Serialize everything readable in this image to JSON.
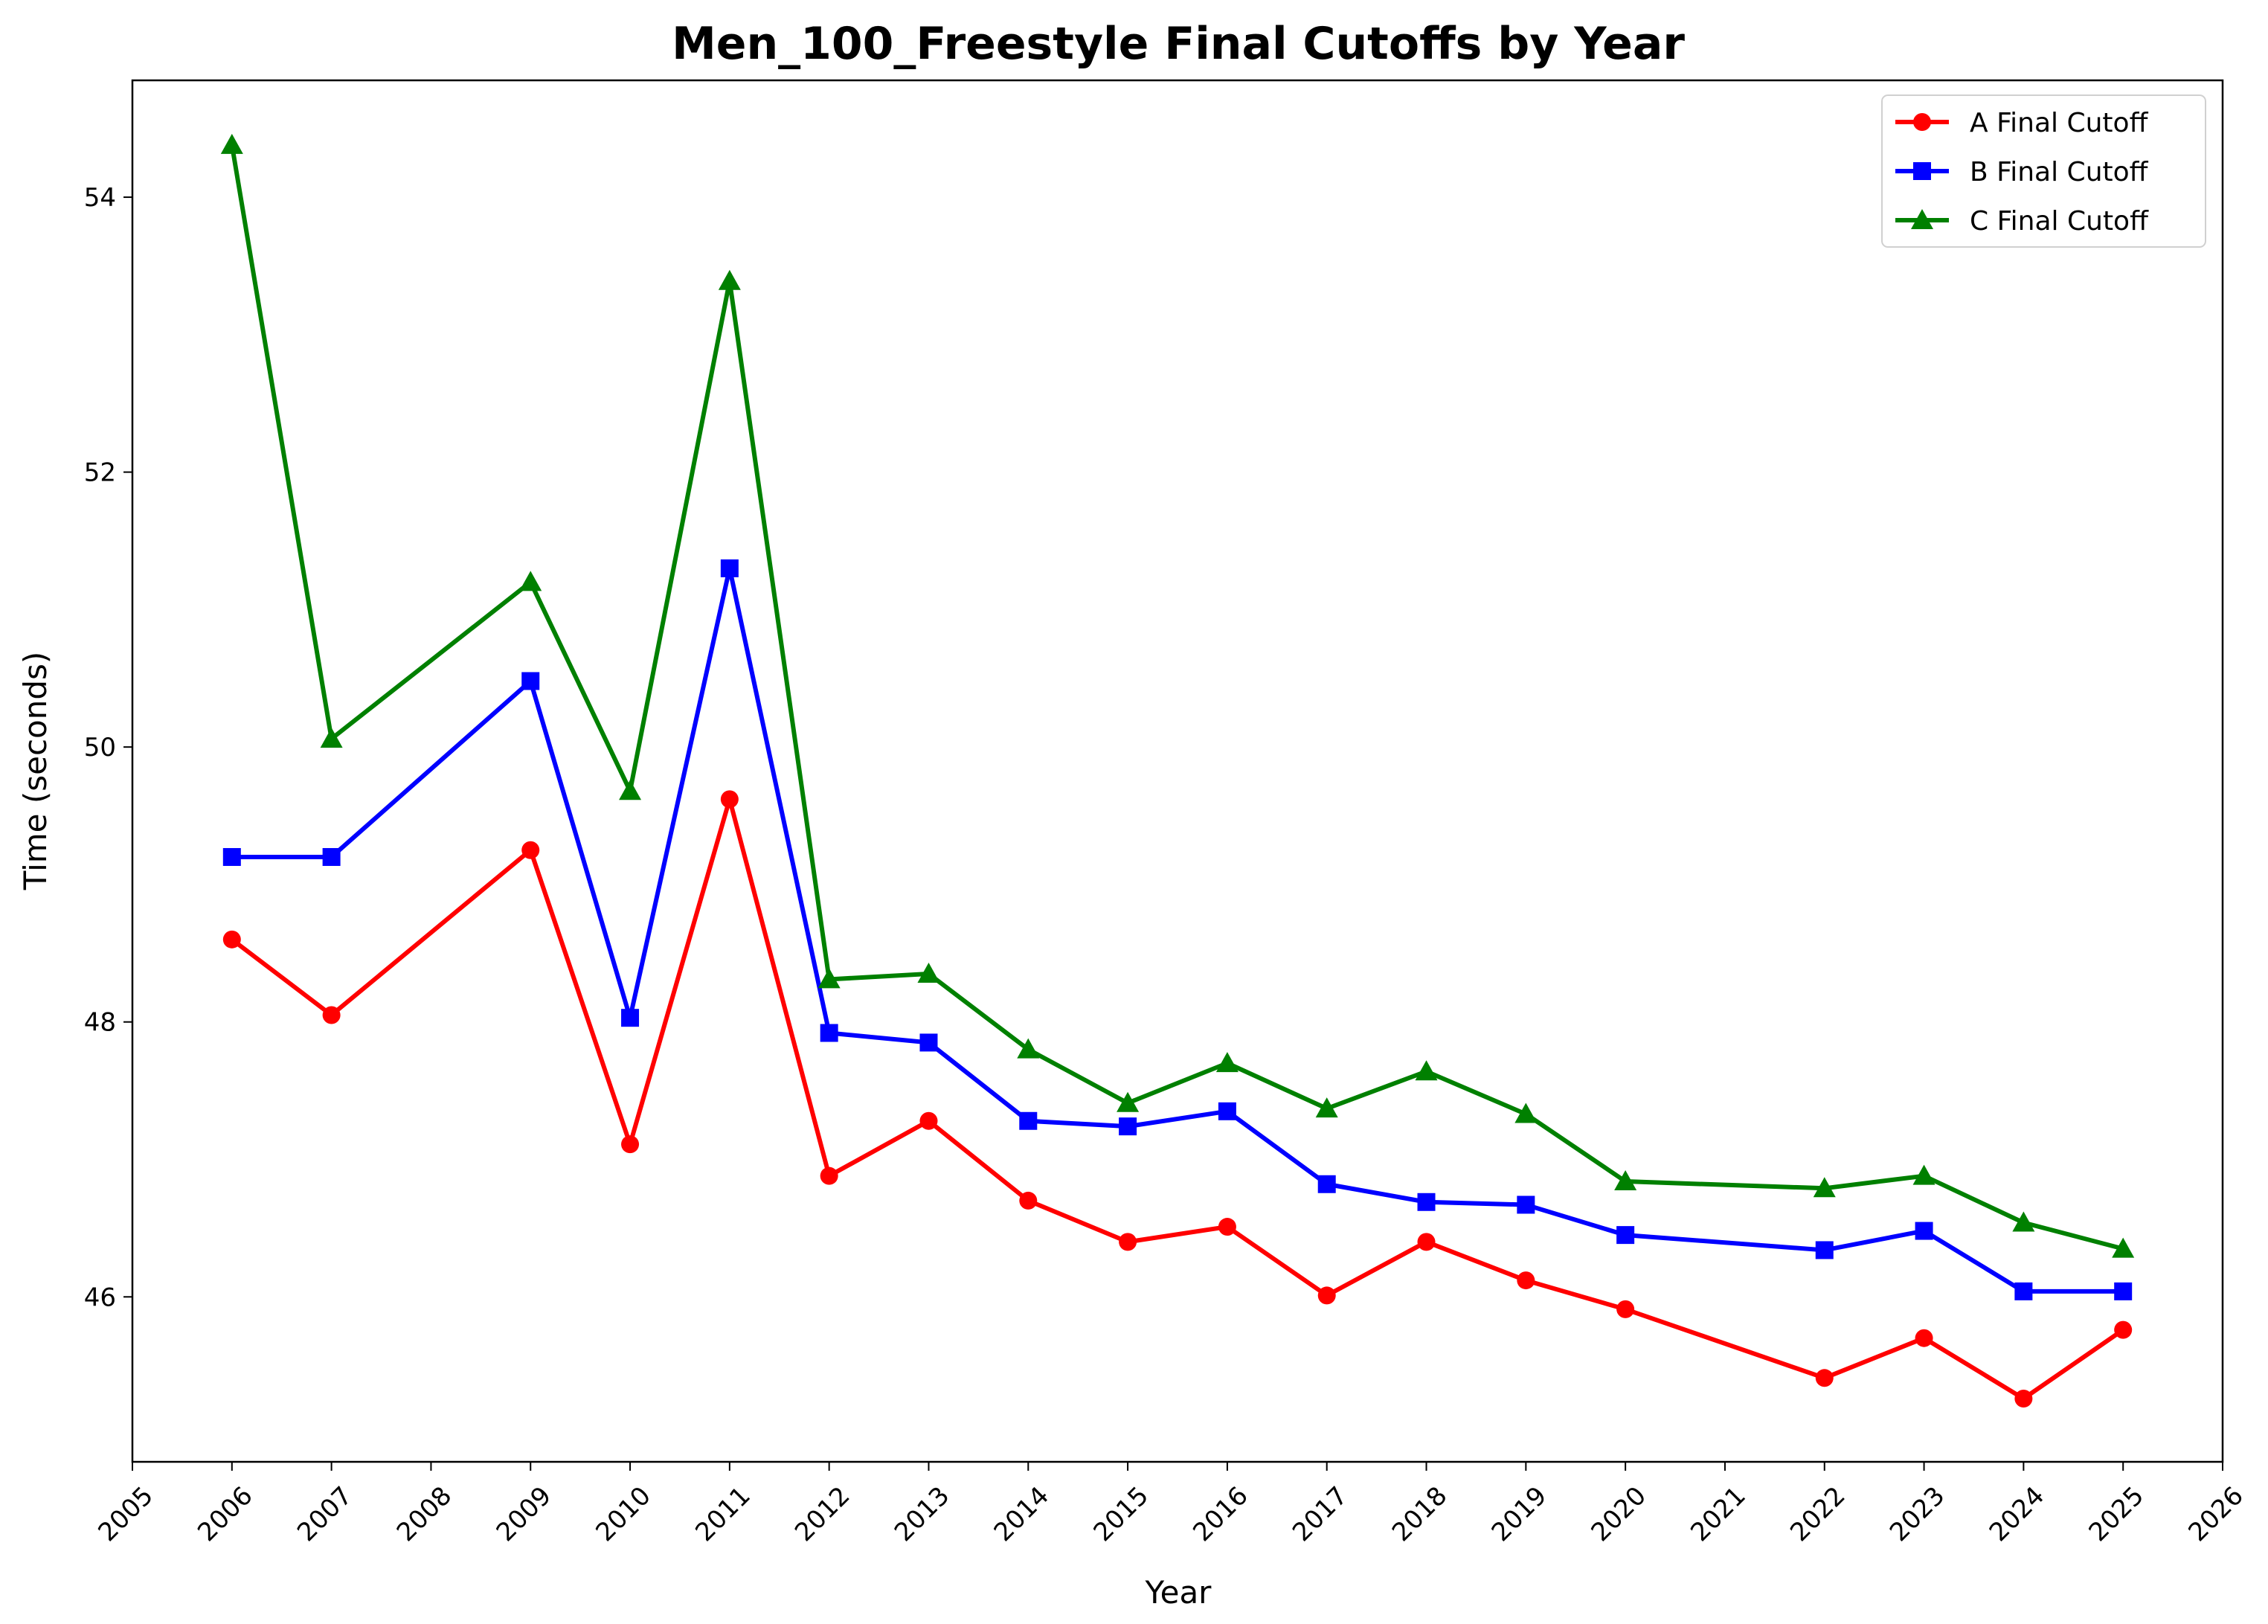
{
  "chart_data": {
    "type": "line",
    "title": "Men_100_Freestyle Final Cutoffs by Year",
    "xlabel": "Year",
    "ylabel": "Time (seconds)",
    "xlim": [
      2005,
      2026
    ],
    "ylim": [
      44.8,
      54.85
    ],
    "x_ticks": [
      2005,
      2006,
      2007,
      2008,
      2009,
      2010,
      2011,
      2012,
      2013,
      2014,
      2015,
      2016,
      2017,
      2018,
      2019,
      2020,
      2021,
      2022,
      2023,
      2024,
      2025,
      2026
    ],
    "y_ticks": [
      46,
      48,
      50,
      52,
      54
    ],
    "grid": false,
    "legend_position": "top-right",
    "series": [
      {
        "name": "A Final Cutoff",
        "color": "#ff0000",
        "marker": "circle",
        "x": [
          2006,
          2007,
          2009,
          2010,
          2011,
          2012,
          2013,
          2014,
          2015,
          2016,
          2017,
          2018,
          2019,
          2020,
          2022,
          2023,
          2024,
          2025
        ],
        "values": [
          48.6,
          48.05,
          49.25,
          47.11,
          49.62,
          46.88,
          47.28,
          46.7,
          46.4,
          46.51,
          46.01,
          46.4,
          46.12,
          45.91,
          45.41,
          45.7,
          45.26,
          45.76
        ]
      },
      {
        "name": "B Final Cutoff",
        "color": "#0000ff",
        "marker": "square",
        "x": [
          2006,
          2007,
          2009,
          2010,
          2011,
          2012,
          2013,
          2014,
          2015,
          2016,
          2017,
          2018,
          2019,
          2020,
          2022,
          2023,
          2024,
          2025
        ],
        "values": [
          49.2,
          49.2,
          50.48,
          48.03,
          51.3,
          47.92,
          47.85,
          47.28,
          47.24,
          47.35,
          46.82,
          46.69,
          46.67,
          46.45,
          46.34,
          46.48,
          46.04,
          46.04
        ]
      },
      {
        "name": "C Final Cutoff",
        "color": "#008000",
        "marker": "triangle",
        "x": [
          2006,
          2007,
          2009,
          2010,
          2011,
          2012,
          2013,
          2014,
          2015,
          2016,
          2017,
          2018,
          2019,
          2020,
          2022,
          2023,
          2024,
          2025
        ],
        "values": [
          54.38,
          50.06,
          51.2,
          49.68,
          53.39,
          48.31,
          48.35,
          47.8,
          47.41,
          47.7,
          47.37,
          47.64,
          47.33,
          46.84,
          46.79,
          46.88,
          46.54,
          46.35
        ]
      }
    ]
  }
}
